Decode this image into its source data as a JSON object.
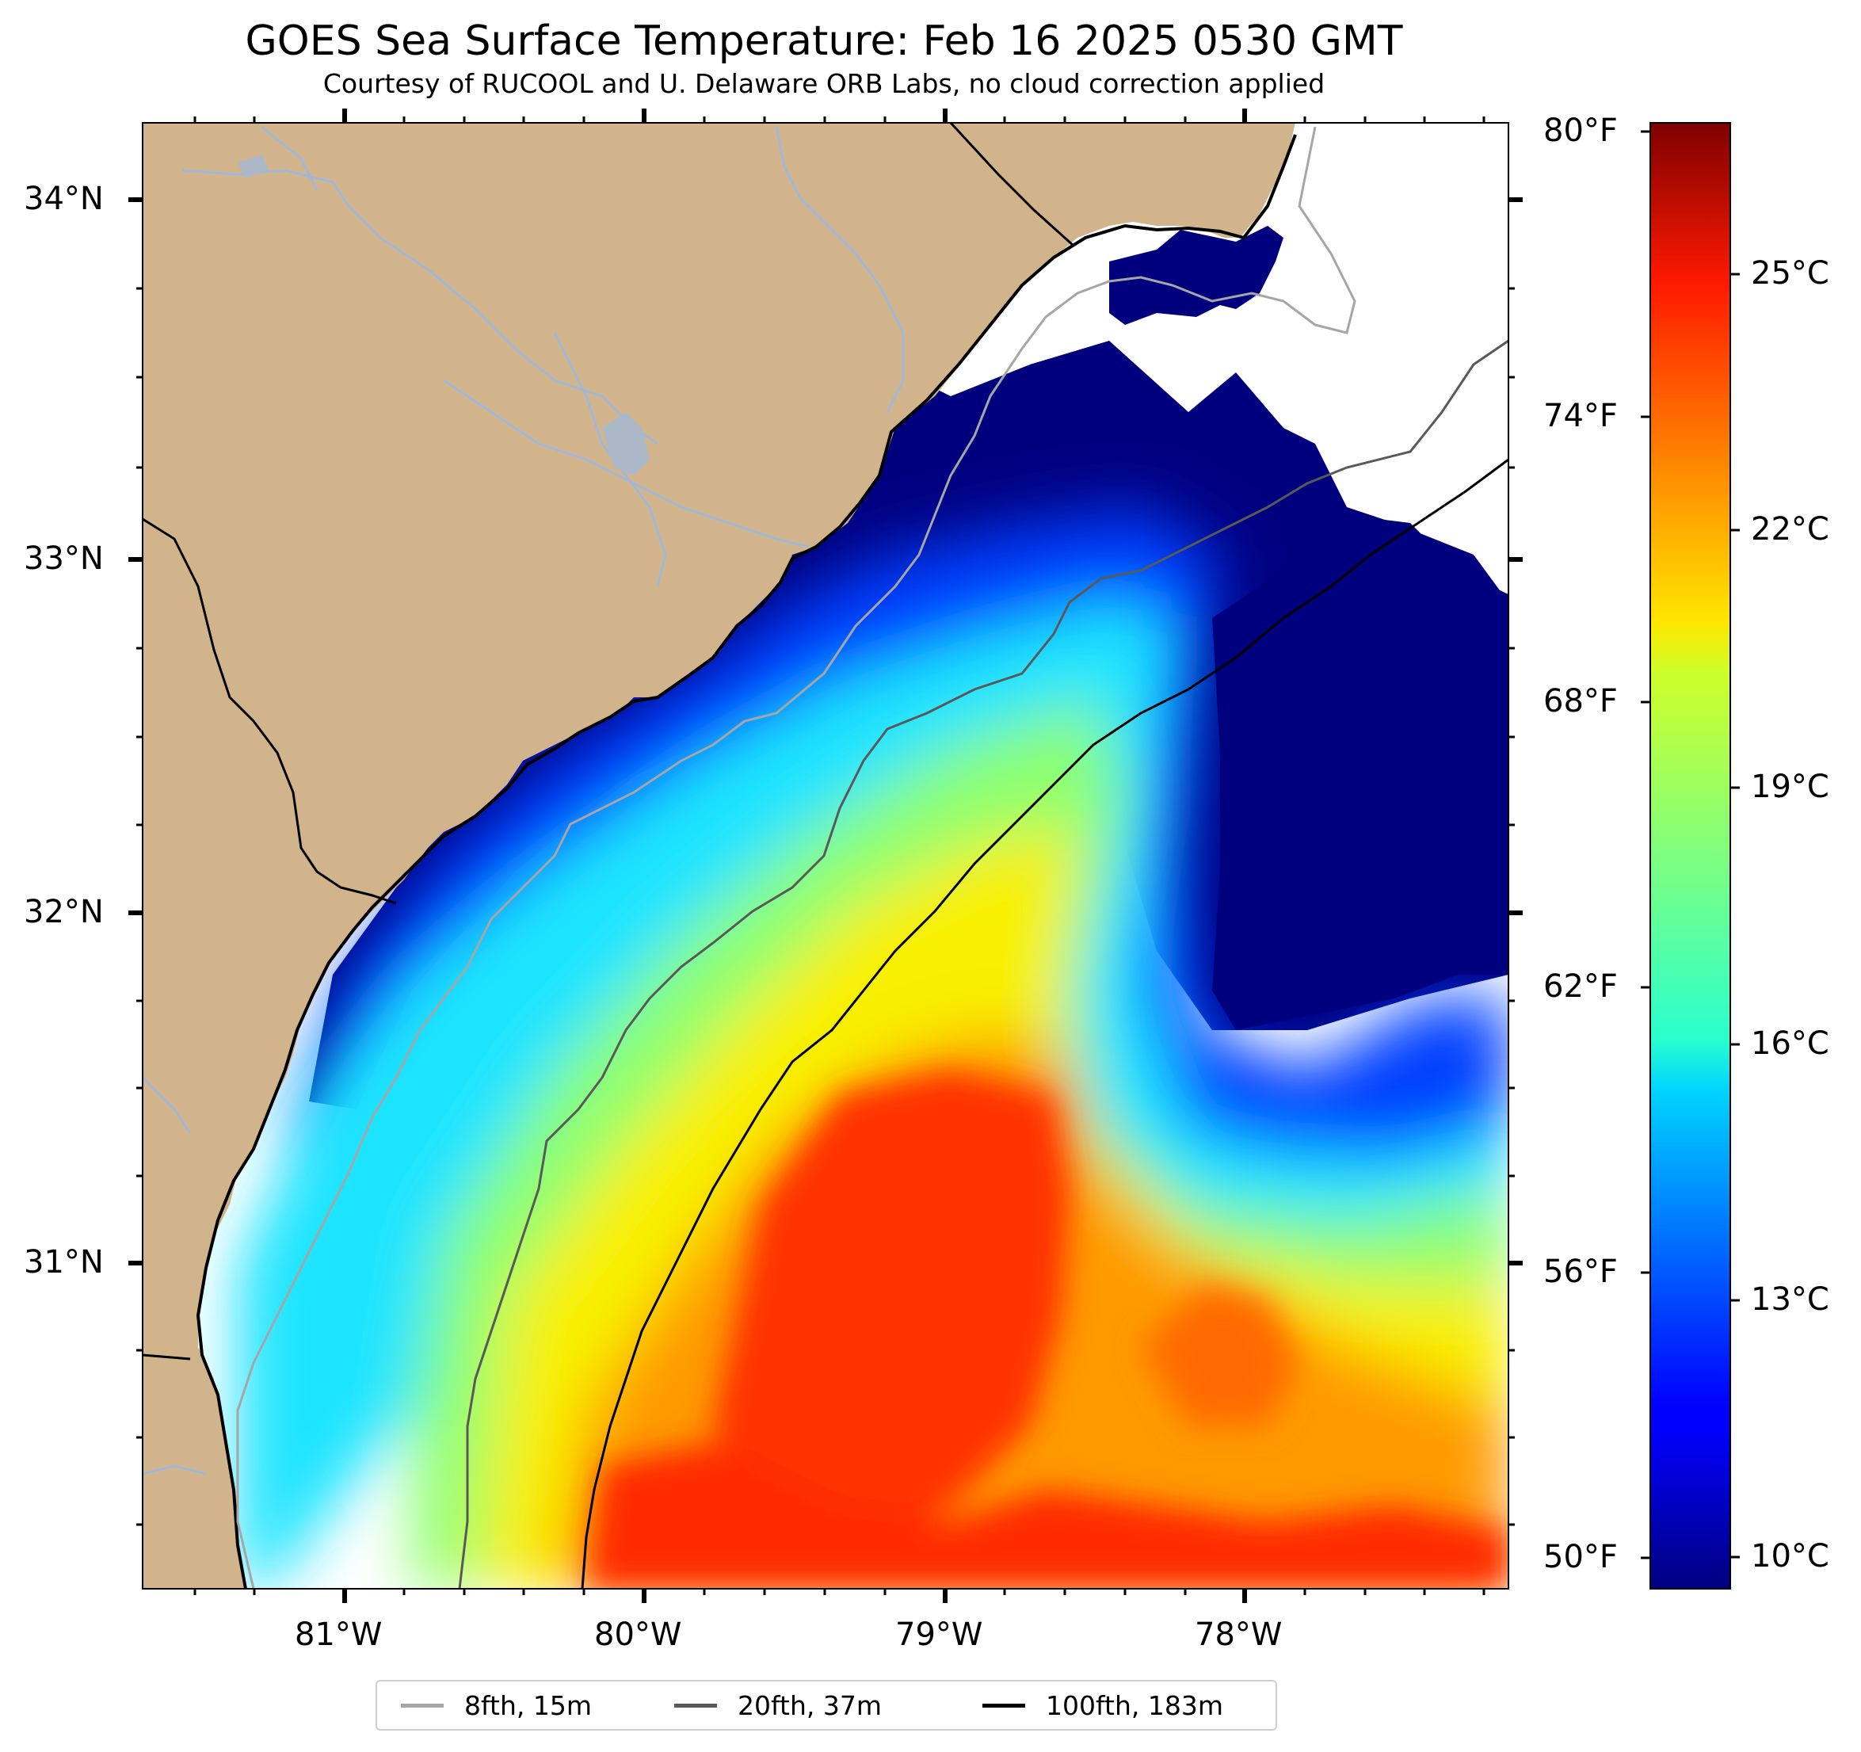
{
  "title": "GOES Sea Surface Temperature: Feb 16 2025 0530 GMT",
  "subtitle": "Courtesy of RUCOOL and U. Delaware ORB Labs, no cloud correction applied",
  "map": {
    "lat_range": [
      30.1,
      34.2
    ],
    "lon_range": [
      -81.6,
      -77.1
    ],
    "lat_ticks": [
      "34°N",
      "33°N",
      "32°N",
      "31°N"
    ],
    "lon_ticks": [
      "81°W",
      "80°W",
      "79°W",
      "78°W"
    ],
    "land_color": "#d2b48c",
    "ocean_nodata_color": "#ffffff",
    "coast_color": "#000000",
    "river_color": "#a0b8d8"
  },
  "colorbar": {
    "colormap": "jet",
    "range_celsius": [
      9.5,
      27.2
    ],
    "celsius_ticks": [
      "25°C",
      "22°C",
      "19°C",
      "16°C",
      "13°C",
      "10°C"
    ],
    "fahrenheit_ticks": [
      "80°F",
      "74°F",
      "68°F",
      "62°F",
      "56°F",
      "50°F"
    ]
  },
  "legend": [
    {
      "label": "8fth, 15m",
      "color": "#a6a6a6"
    },
    {
      "label": "20fth, 37m",
      "color": "#595959"
    },
    {
      "label": "100fth, 183m",
      "color": "#000000"
    }
  ]
}
